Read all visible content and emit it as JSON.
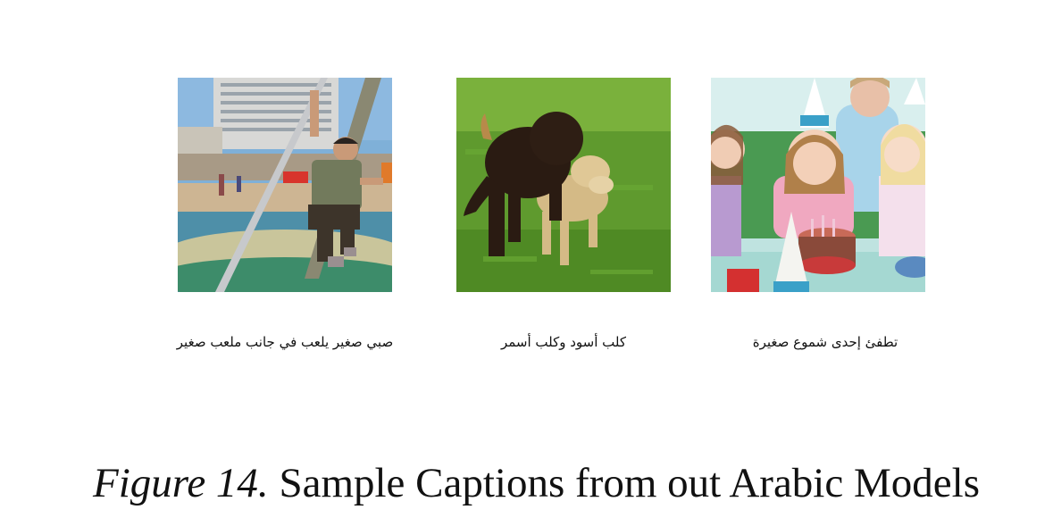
{
  "figure": {
    "label": "Figure 14.",
    "title": "Sample Captions from out Arabic Models"
  },
  "samples": [
    {
      "caption": "صبي صغير يلعب في جانب ملعب صغير"
    },
    {
      "caption": "كلب أسود وكلب أسمر"
    },
    {
      "caption": "تطفئ إحدى شموع صغيرة"
    }
  ]
}
